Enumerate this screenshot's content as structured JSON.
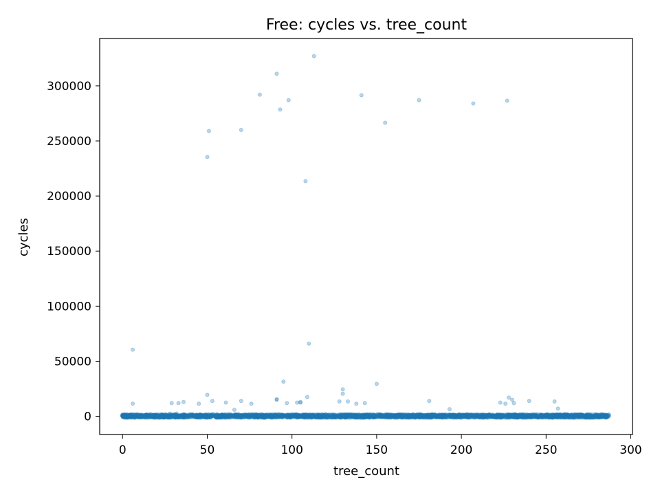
{
  "chart_data": {
    "type": "scatter",
    "title": "Free: cycles vs. tree_count",
    "xlabel": "tree_count",
    "ylabel": "cycles",
    "xlim": [
      -13.5,
      301
    ],
    "ylim": [
      -16500,
      343000
    ],
    "xticks": [
      0,
      50,
      100,
      150,
      200,
      250,
      300
    ],
    "yticks": [
      0,
      50000,
      100000,
      150000,
      200000,
      250000,
      300000
    ],
    "xtick_labels": [
      "0",
      "50",
      "100",
      "150",
      "200",
      "250",
      "300"
    ],
    "ytick_labels": [
      "0",
      "50000",
      "100000",
      "150000",
      "200000",
      "250000",
      "300000"
    ],
    "grid": false,
    "marker_color": "#1f77b4",
    "marker_alpha": 0.3,
    "dense_band": {
      "description": "many points near zero across tree_count 0-287",
      "x_range": [
        0,
        287
      ],
      "y_range": [
        -1000,
        1500
      ]
    },
    "series": [
      {
        "x": [
          6,
          113,
          91,
          81,
          141,
          98,
          175,
          227,
          207,
          93,
          155,
          70,
          51,
          50,
          108,
          110,
          6,
          95,
          150,
          130,
          130,
          50,
          109,
          228,
          91,
          230,
          53,
          70,
          143,
          76,
          105,
          91,
          103,
          181,
          240,
          128,
          133,
          61,
          138,
          97,
          29,
          33,
          36,
          223,
          226,
          231,
          105,
          255,
          32,
          66,
          257,
          193,
          45,
          28
        ],
        "y": [
          60500,
          327000,
          311000,
          292000,
          291500,
          287000,
          287000,
          286500,
          284000,
          278500,
          266500,
          260000,
          259000,
          235500,
          213500,
          66000,
          11500,
          31500,
          29500,
          24500,
          20500,
          19500,
          17500,
          17000,
          15500,
          15000,
          14000,
          14000,
          12000,
          11500,
          13000,
          15000,
          12500,
          14000,
          14000,
          13500,
          13500,
          12500,
          11500,
          12000,
          12000,
          12000,
          13000,
          12500,
          11500,
          12000,
          12500,
          13500,
          2500,
          6000,
          7000,
          6500,
          11500,
          2500
        ]
      }
    ]
  }
}
